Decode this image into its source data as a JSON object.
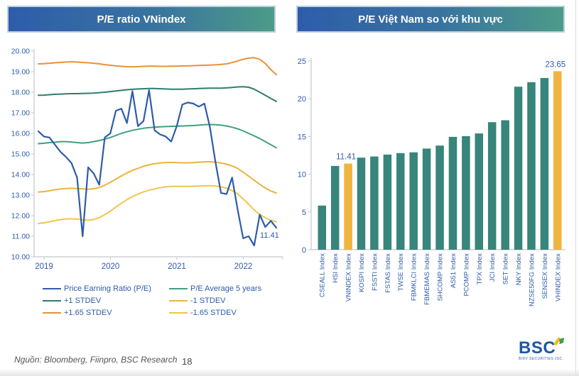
{
  "footer": {
    "source_note": "Nguồn: Bloomberg, Fiinpro, BSC Research",
    "page_number": "18"
  },
  "logo": {
    "text": "BSC",
    "subtext": "BIDV SECURITIES JSC.",
    "cube_icon": "bsc-cube-icon",
    "colors": {
      "text": "#1b57a6",
      "cube_yellow": "#f3c019",
      "cube_green": "#3f9e52"
    }
  },
  "colors": {
    "header_gradient_start": "#2e5cab",
    "header_gradient_end": "#4d9b88",
    "axis_text": "#2e5ca8",
    "axis_line": "#c3c7cd",
    "bar_teal": "#37857b",
    "bar_highlight": "#f0b43f"
  },
  "chart_data": [
    {
      "type": "line",
      "title": "P/E ratio VNindex",
      "ylim": [
        10,
        20
      ],
      "y_ticks": [
        "20.00",
        "19.00",
        "18.00",
        "17.00",
        "16.00",
        "15.00",
        "14.00",
        "13.00",
        "12.00",
        "11.00",
        "10.00"
      ],
      "x_tick_labels": [
        "2019",
        "2020",
        "2021",
        "2022"
      ],
      "x_tick_indices": [
        0,
        12,
        24,
        36
      ],
      "grid": false,
      "legend_position": "bottom",
      "legend_order": [
        0,
        2,
        4,
        1,
        3,
        5
      ],
      "annotation": {
        "text": "11.41",
        "series": 0,
        "point": "last"
      },
      "series": [
        {
          "name": "Price Earning Ratio (P/E)",
          "color": "#2e5caa",
          "width": 2.2,
          "values": [
            16.1,
            15.85,
            15.8,
            15.45,
            15.1,
            14.85,
            14.55,
            13.85,
            11.0,
            14.35,
            14.05,
            13.5,
            15.8,
            16.0,
            17.1,
            17.2,
            16.5,
            18.05,
            16.35,
            16.6,
            18.1,
            16.15,
            15.95,
            15.85,
            15.6,
            16.35,
            17.4,
            17.5,
            17.45,
            17.3,
            17.45,
            16.3,
            14.6,
            13.1,
            13.05,
            13.85,
            12.3,
            10.9,
            11.0,
            10.55,
            12.05,
            11.45,
            11.75,
            11.41
          ]
        },
        {
          "name": "P/E Average 5 years",
          "color": "#41a07c",
          "width": 2,
          "values": [
            15.5,
            15.52,
            15.55,
            15.57,
            15.6,
            15.6,
            15.58,
            15.55,
            15.53,
            15.55,
            15.6,
            15.65,
            15.72,
            15.8,
            15.9,
            16.0,
            16.08,
            16.15,
            16.2,
            16.25,
            16.28,
            16.3,
            16.32,
            16.33,
            16.34,
            16.35,
            16.36,
            16.37,
            16.38,
            16.4,
            16.42,
            16.43,
            16.42,
            16.4,
            16.36,
            16.3,
            16.22,
            16.12,
            16.0,
            15.88,
            15.75,
            15.6,
            15.45,
            15.3
          ]
        },
        {
          "name": "+1 STDEV",
          "color": "#2c7d6e",
          "width": 2,
          "values": [
            17.85,
            17.86,
            17.88,
            17.9,
            17.91,
            17.92,
            17.93,
            17.93,
            17.94,
            17.95,
            17.96,
            17.98,
            18.0,
            18.03,
            18.06,
            18.09,
            18.12,
            18.14,
            18.16,
            18.17,
            18.18,
            18.18,
            18.17,
            18.16,
            18.15,
            18.15,
            18.15,
            18.16,
            18.17,
            18.18,
            18.19,
            18.2,
            18.2,
            18.2,
            18.21,
            18.23,
            18.26,
            18.27,
            18.24,
            18.15,
            18.0,
            17.85,
            17.7,
            17.55
          ]
        },
        {
          "name": "-1 STDEV",
          "color": "#ecb33d",
          "width": 2,
          "values": [
            13.15,
            13.17,
            13.21,
            13.26,
            13.3,
            13.32,
            13.33,
            13.32,
            13.3,
            13.28,
            13.31,
            13.37,
            13.48,
            13.62,
            13.78,
            13.93,
            14.08,
            14.2,
            14.3,
            14.4,
            14.47,
            14.52,
            14.56,
            14.58,
            14.59,
            14.58,
            14.57,
            14.57,
            14.58,
            14.6,
            14.61,
            14.62,
            14.6,
            14.56,
            14.5,
            14.42,
            14.3,
            14.12,
            13.92,
            13.72,
            13.52,
            13.35,
            13.2,
            13.1
          ]
        },
        {
          "name": "+1.65 STDEV",
          "color": "#e8913a",
          "width": 2,
          "values": [
            19.38,
            19.39,
            19.41,
            19.43,
            19.45,
            19.47,
            19.48,
            19.47,
            19.45,
            19.43,
            19.41,
            19.38,
            19.34,
            19.31,
            19.28,
            19.26,
            19.24,
            19.23,
            19.24,
            19.26,
            19.27,
            19.27,
            19.26,
            19.26,
            19.27,
            19.27,
            19.28,
            19.28,
            19.29,
            19.3,
            19.31,
            19.32,
            19.33,
            19.35,
            19.38,
            19.44,
            19.52,
            19.6,
            19.66,
            19.68,
            19.6,
            19.4,
            19.1,
            18.85
          ]
        },
        {
          "name": "-1.65 STDEV",
          "color": "#f1c54c",
          "width": 2,
          "values": [
            11.62,
            11.65,
            11.7,
            11.76,
            11.81,
            11.84,
            11.85,
            11.83,
            11.8,
            11.78,
            11.82,
            11.9,
            12.05,
            12.22,
            12.42,
            12.6,
            12.78,
            12.92,
            13.05,
            13.15,
            13.24,
            13.3,
            13.36,
            13.4,
            13.42,
            13.42,
            13.42,
            13.42,
            13.43,
            13.44,
            13.45,
            13.46,
            13.44,
            13.4,
            13.33,
            13.22,
            13.05,
            12.82,
            12.55,
            12.28,
            12.05,
            11.9,
            11.78,
            11.7
          ]
        }
      ]
    },
    {
      "type": "bar",
      "title": "P/E Việt Nam so với khu vực",
      "ylim": [
        0,
        25
      ],
      "y_ticks": [
        0,
        5,
        10,
        15,
        20,
        25
      ],
      "grid": false,
      "categories": [
        "CSEALL Index",
        "HSI Index",
        "VNINDEX Index",
        "KOSPI Index",
        "FSSTI Index",
        "FSTAS Index",
        "TWSE Index",
        "FBMKLCI Index",
        "FBMEMAS Index",
        "SHCOMP Index",
        "AS51 Index",
        "PCOMP Index",
        "TPX Index",
        "JCI Index",
        "SET Index",
        "NKY Index",
        "NZSE50FG Index",
        "SENSEX Index",
        "VHINDEX Index"
      ],
      "values": [
        5.85,
        11.1,
        11.41,
        12.2,
        12.35,
        12.6,
        12.8,
        12.9,
        13.4,
        13.8,
        14.95,
        15.05,
        15.4,
        16.9,
        17.15,
        21.6,
        22.2,
        22.75,
        23.65
      ],
      "highlight_indices": [
        2,
        18
      ],
      "bar_color": "#37857b",
      "highlight_color": "#f0b43f",
      "data_labels": [
        {
          "index": 2,
          "text": "11.41"
        },
        {
          "index": 18,
          "text": "23.65"
        }
      ]
    }
  ]
}
